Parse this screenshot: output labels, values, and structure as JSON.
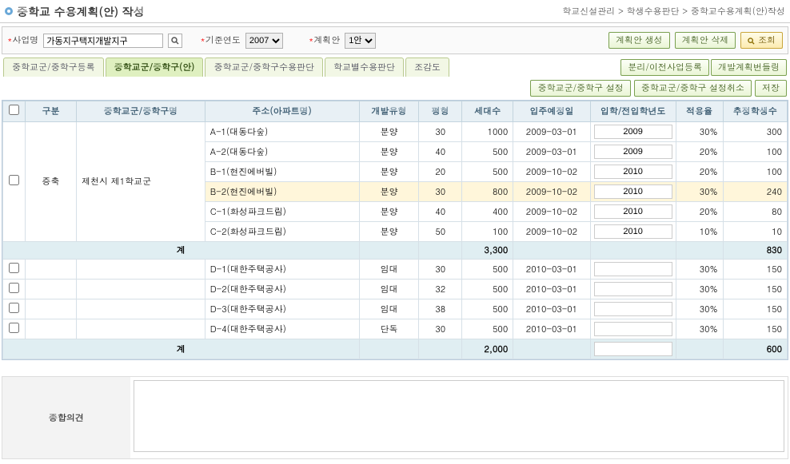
{
  "header": {
    "title": "중학교 수용계획(안) 작성",
    "breadcrumb": "학교신설관리 > 학생수용판단 > 중학교수용계획(안)작성"
  },
  "search": {
    "biz_label": "사업명",
    "biz_value": "가동지구택지개발지구",
    "year_label": "기준연도",
    "year_value": "2007",
    "plan_label": "계획안",
    "plan_value": "1안",
    "btn_create": "계획안 생성",
    "btn_delete": "계획안 삭제",
    "btn_search": "조회"
  },
  "tabs": {
    "items": [
      "중학교군/중학구등록",
      "중학교군/중학구(안)",
      "중학교군/중학구수용판단",
      "학교별수용판단",
      "조감도"
    ],
    "right_btn1": "분리/이전사업등록",
    "right_btn2": "개발계획번들링"
  },
  "sub_actions": {
    "btn_set": "중학교군/중학구 설정",
    "btn_cancel": "중학교군/중학구 설정취소",
    "btn_save": "저장"
  },
  "columns": {
    "chk": "",
    "gubun": "구분",
    "district": "중학교군/중학구명",
    "addr": "주소(아파트명)",
    "dev_type": "개발유형",
    "pyung": "평형",
    "households": "세대수",
    "move_date": "입주예정일",
    "enroll_year": "입학/전입학년도",
    "rate": "적용율",
    "est_students": "추정학생수"
  },
  "group1": {
    "gubun": "증축",
    "district": "제천시 제1학교군",
    "rows": [
      {
        "addr": "A-1(대동다숲)",
        "type": "분양",
        "py": "30",
        "hh": "1000",
        "date": "2009-03-01",
        "year": "2009",
        "rate": "30%",
        "est": "300",
        "hl": false
      },
      {
        "addr": "A-2(대동다숲)",
        "type": "분양",
        "py": "40",
        "hh": "500",
        "date": "2009-03-01",
        "year": "2009",
        "rate": "20%",
        "est": "100",
        "hl": false
      },
      {
        "addr": "B-1(현진에버빌)",
        "type": "분양",
        "py": "20",
        "hh": "500",
        "date": "2009-10-02",
        "year": "2010",
        "rate": "20%",
        "est": "100",
        "hl": false
      },
      {
        "addr": "B-2(현진에버빌)",
        "type": "분양",
        "py": "30",
        "hh": "800",
        "date": "2009-10-02",
        "year": "2010",
        "rate": "30%",
        "est": "240",
        "hl": true
      },
      {
        "addr": "C-1(화성파크드림)",
        "type": "분양",
        "py": "40",
        "hh": "400",
        "date": "2009-10-02",
        "year": "2010",
        "rate": "20%",
        "est": "80",
        "hl": false
      },
      {
        "addr": "C-2(화성파크드림)",
        "type": "분양",
        "py": "50",
        "hh": "100",
        "date": "2009-10-02",
        "year": "2010",
        "rate": "10%",
        "est": "10",
        "hl": false
      }
    ],
    "subtotal": {
      "label": "계",
      "hh": "3,300",
      "est": "830"
    }
  },
  "group2": {
    "rows": [
      {
        "addr": "D-1(대한주택공사)",
        "type": "임대",
        "py": "30",
        "hh": "500",
        "date": "2010-03-01",
        "year": "",
        "rate": "30%",
        "est": "150"
      },
      {
        "addr": "D-2(대한주택공사)",
        "type": "임대",
        "py": "32",
        "hh": "500",
        "date": "2010-03-01",
        "year": "",
        "rate": "30%",
        "est": "150"
      },
      {
        "addr": "D-3(대한주택공사)",
        "type": "임대",
        "py": "38",
        "hh": "500",
        "date": "2010-03-01",
        "year": "",
        "rate": "30%",
        "est": "150"
      },
      {
        "addr": "D-4(대한주택공사)",
        "type": "단독",
        "py": "30",
        "hh": "500",
        "date": "2010-03-01",
        "year": "",
        "rate": "30%",
        "est": "150"
      }
    ],
    "subtotal": {
      "label": "계",
      "hh": "2,000",
      "est": "600"
    }
  },
  "opinion": {
    "label": "종합의견",
    "value": ""
  }
}
